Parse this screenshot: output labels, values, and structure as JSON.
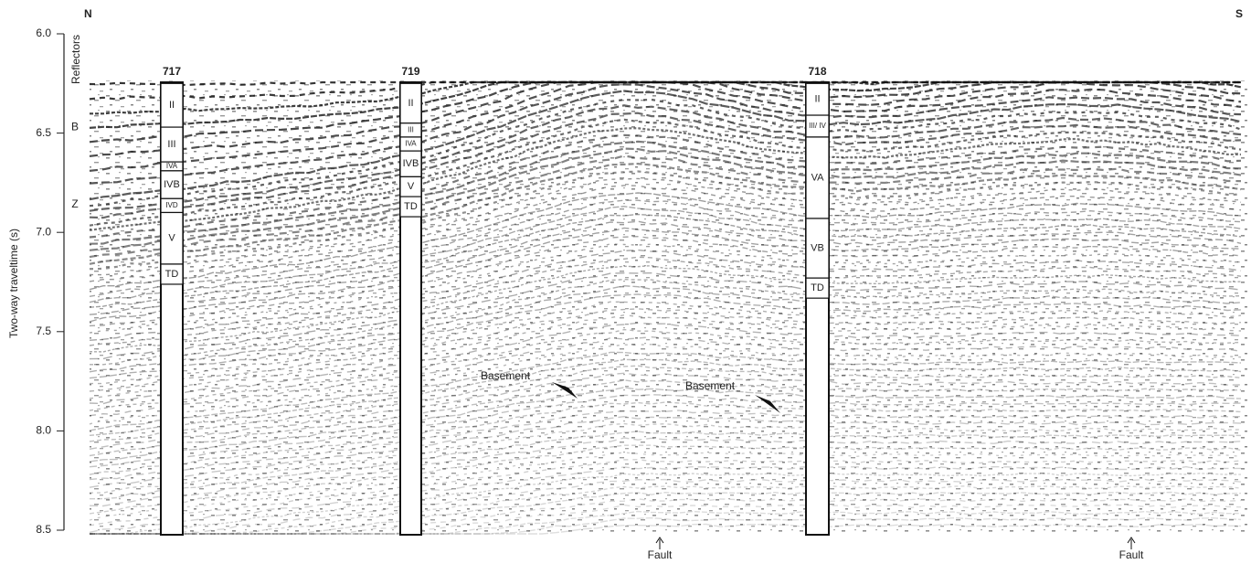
{
  "compass": {
    "north": "N",
    "south": "S"
  },
  "y_axis": {
    "label": "Two-way traveltime (s)",
    "ticks": [
      {
        "value": 6,
        "label": "6.0"
      },
      {
        "value": 6.5,
        "label": "6.5"
      },
      {
        "value": 7,
        "label": "7.0"
      },
      {
        "value": 7.5,
        "label": "7.5"
      },
      {
        "value": 8,
        "label": "8.0"
      },
      {
        "value": 8.5,
        "label": "8.5"
      }
    ]
  },
  "reflectors": {
    "title": "Reflectors",
    "labels": [
      {
        "text": "B",
        "value": 6.47
      },
      {
        "text": "Z",
        "value": 6.86
      }
    ]
  },
  "sites": [
    {
      "name": "717",
      "units": [
        {
          "label": "II",
          "top": 6.25,
          "bottom": 6.47
        },
        {
          "label": "III",
          "top": 6.47,
          "bottom": 6.645
        },
        {
          "label": "IVA",
          "top": 6.645,
          "bottom": 6.69
        },
        {
          "label": "IVB",
          "top": 6.69,
          "bottom": 6.83
        },
        {
          "label": "IVD",
          "top": 6.83,
          "bottom": 6.9
        },
        {
          "label": "V",
          "top": 6.9,
          "bottom": 7.16
        },
        {
          "label": "TD",
          "top": 7.16
        }
      ]
    },
    {
      "name": "719",
      "units": [
        {
          "label": "II",
          "top": 6.25,
          "bottom": 6.45
        },
        {
          "label": "III",
          "top": 6.45,
          "bottom": 6.52
        },
        {
          "label": "IVA",
          "top": 6.52,
          "bottom": 6.59
        },
        {
          "label": "IVB",
          "top": 6.59,
          "bottom": 6.72
        },
        {
          "label": "V",
          "top": 6.72,
          "bottom": 6.82
        },
        {
          "label": "TD",
          "top": 6.82
        }
      ]
    },
    {
      "name": "718",
      "units": [
        {
          "label": "II",
          "top": 6.25,
          "bottom": 6.41
        },
        {
          "label": "III/ IV",
          "top": 6.41,
          "bottom": 6.52
        },
        {
          "label": "VA",
          "top": 6.52,
          "bottom": 6.93
        },
        {
          "label": "VB",
          "top": 6.93,
          "bottom": 7.23
        },
        {
          "label": "TD",
          "top": 7.23
        }
      ]
    }
  ],
  "annotations": {
    "basement": [
      "Basement",
      "Basement"
    ],
    "fault": [
      "Fault",
      "Fault"
    ]
  }
}
